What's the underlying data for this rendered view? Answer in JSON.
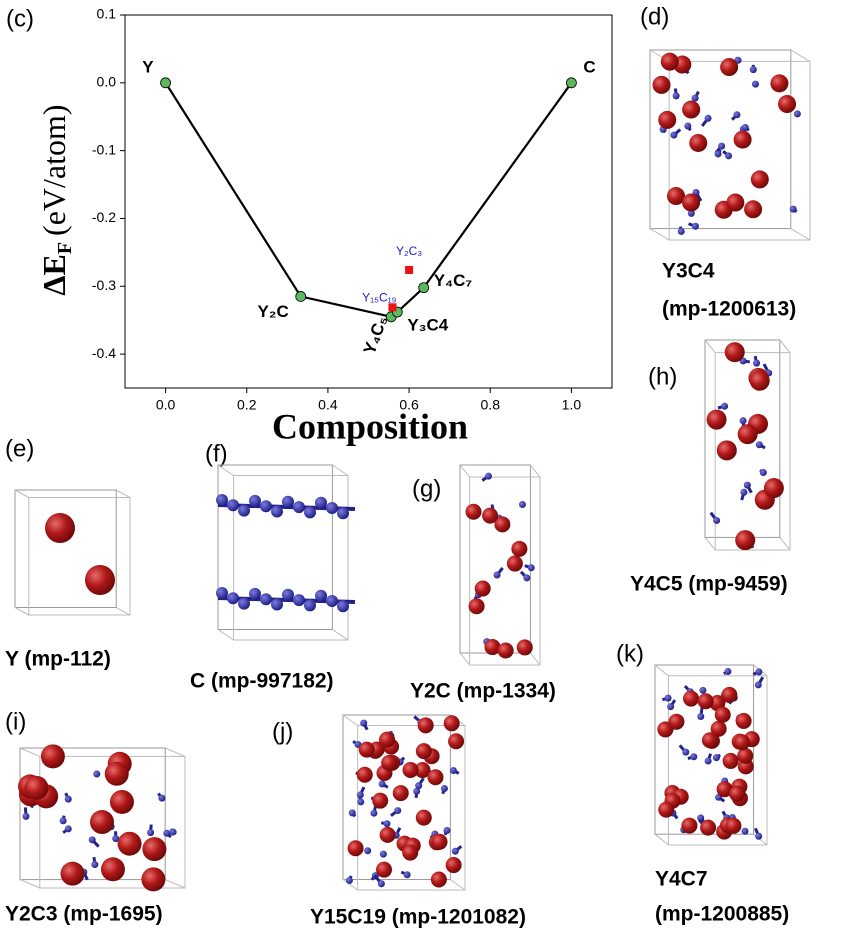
{
  "chart_data": {
    "type": "line",
    "panel_label": "(c)",
    "x_label": "Composition",
    "y_label": "ΔE",
    "y_label_sub": "F",
    "y_label_unit": "(eV/atom)",
    "xlim": [
      -0.1,
      1.1
    ],
    "ylim": [
      -0.45,
      0.1
    ],
    "xticks": [
      {
        "value": 0,
        "label": "0.0"
      },
      {
        "value": 0.2,
        "label": "0.2"
      },
      {
        "value": 0.4,
        "label": "0.4"
      },
      {
        "value": 0.6,
        "label": "0.6"
      },
      {
        "value": 0.8,
        "label": "0.8"
      },
      {
        "value": 1,
        "label": "1.0"
      }
    ],
    "yticks": [
      -0.4,
      -0.3,
      -0.2,
      -0.1,
      {
        "value": 0,
        "label": "0.0"
      },
      0.1
    ],
    "hull": {
      "color": "#000000",
      "marker_color": "#5cb85c",
      "x": [
        0,
        0.333,
        0.556,
        0.571,
        0.636,
        1
      ],
      "values": [
        0,
        -0.315,
        -0.345,
        -0.338,
        -0.302,
        0
      ],
      "labels": [
        "Y",
        "Y₂C",
        "Y₄C₅",
        "Y₃C4",
        "Y₄C₇",
        "C"
      ]
    },
    "off_hull": {
      "color": "#ee1111",
      "label_color": "#1a1adb",
      "x": [
        0.6,
        0.559
      ],
      "values": [
        -0.276,
        -0.331
      ],
      "labels": [
        "Y₂C₃",
        "Y₁₅C₁₉"
      ]
    }
  },
  "panels": [
    {
      "label": "(d)",
      "caption": [
        "Y3C4",
        "(mp-1200613)"
      ]
    },
    {
      "label": "(h)",
      "caption": [
        "Y4C5 (mp-9459)"
      ]
    },
    {
      "label": "(e)",
      "caption": [
        "Y (mp-112)"
      ]
    },
    {
      "label": "(f)",
      "caption": [
        "C (mp-997182)"
      ]
    },
    {
      "label": "(g)",
      "caption": [
        "Y2C (mp-1334)"
      ]
    },
    {
      "label": "(i)",
      "caption": [
        "Y2C3 (mp-1695)"
      ]
    },
    {
      "label": "(j)",
      "caption": [
        "Y15C19 (mp-1201082)"
      ]
    },
    {
      "label": "(k)",
      "caption": [
        "Y4C7",
        "(mp-1200885)"
      ]
    }
  ]
}
